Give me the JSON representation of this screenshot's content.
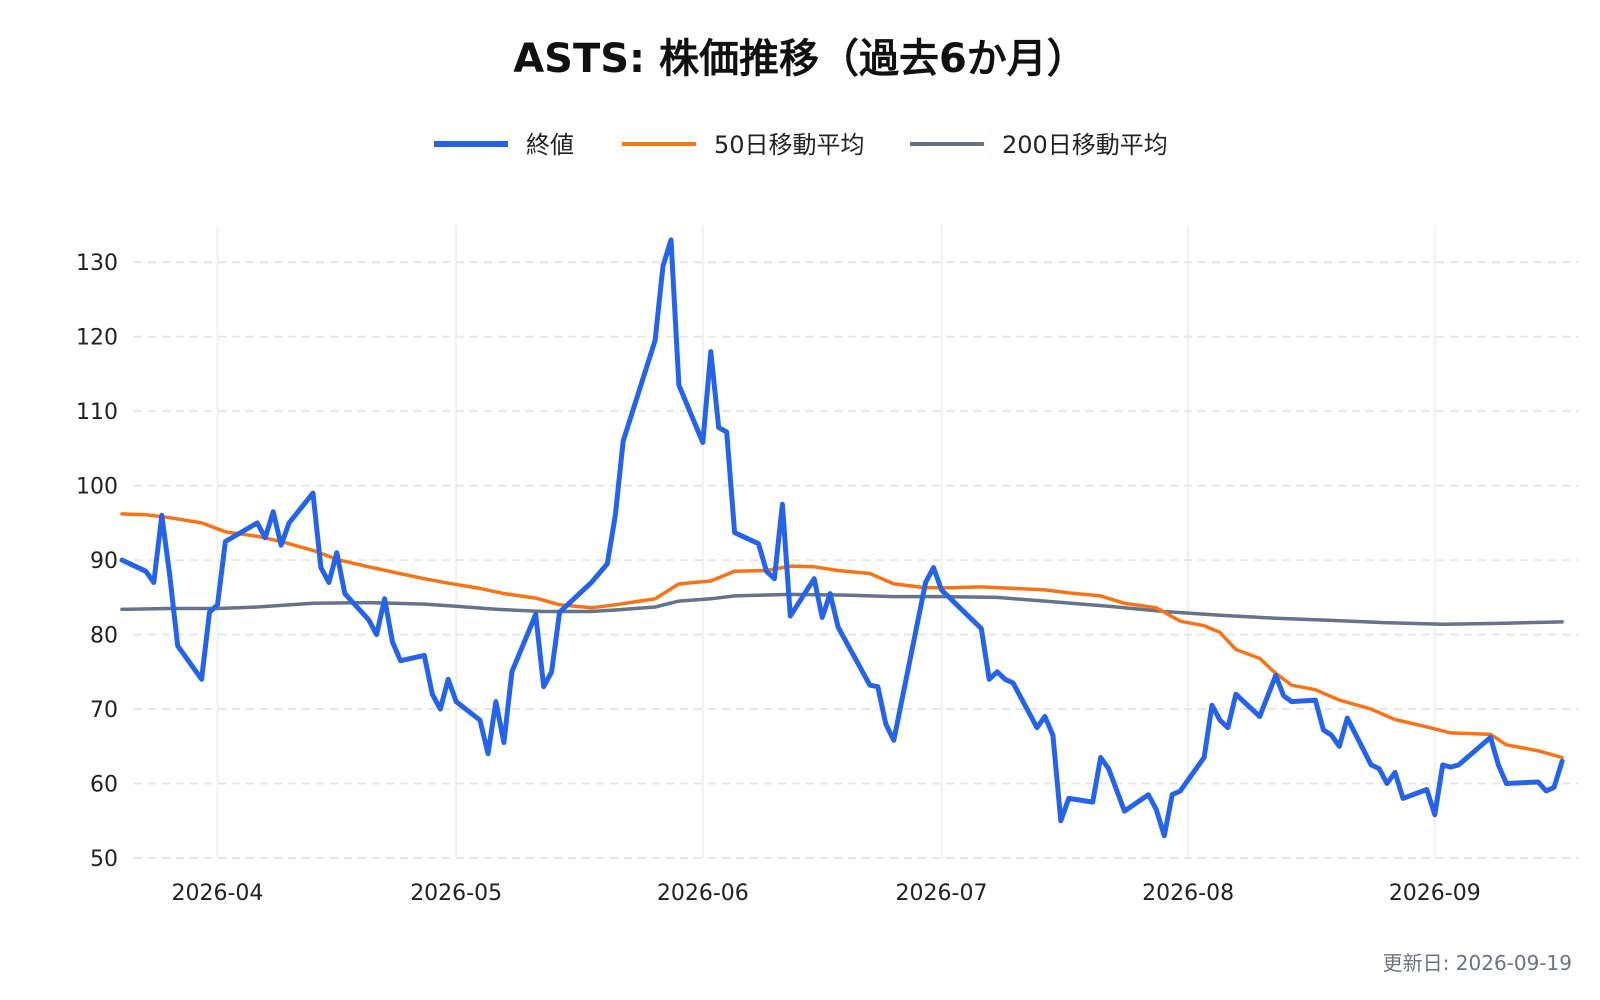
{
  "chart_data": {
    "type": "line",
    "title": "ASTS: 株価推移（過去6か月）",
    "updated_label": "更新日: 2026-09-19",
    "legend_position": "top-center",
    "grid": true,
    "xlim": [
      "2026-03-20",
      "2026-09-19"
    ],
    "ylim": [
      50,
      135
    ],
    "y_ticks": [
      50,
      60,
      70,
      80,
      90,
      100,
      110,
      120,
      130
    ],
    "x_ticks": [
      {
        "date": "2026-04-01",
        "label": "2026-04"
      },
      {
        "date": "2026-05-01",
        "label": "2026-05"
      },
      {
        "date": "2026-06-01",
        "label": "2026-06"
      },
      {
        "date": "2026-07-01",
        "label": "2026-07"
      },
      {
        "date": "2026-08-01",
        "label": "2026-08"
      },
      {
        "date": "2026-09-01",
        "label": "2026-09"
      }
    ],
    "series": [
      {
        "name": "終値",
        "color": "#2563eb",
        "points": [
          [
            "2026-03-20",
            90.0
          ],
          [
            "2026-03-23",
            88.5
          ],
          [
            "2026-03-24",
            87.0
          ],
          [
            "2026-03-25",
            96.0
          ],
          [
            "2026-03-26",
            88.0
          ],
          [
            "2026-03-27",
            78.5
          ],
          [
            "2026-03-30",
            74.0
          ],
          [
            "2026-03-31",
            83.0
          ],
          [
            "2026-04-01",
            84.0
          ],
          [
            "2026-04-02",
            92.5
          ],
          [
            "2026-04-06",
            95.0
          ],
          [
            "2026-04-07",
            93.0
          ],
          [
            "2026-04-08",
            96.5
          ],
          [
            "2026-04-09",
            92.0
          ],
          [
            "2026-04-10",
            95.0
          ],
          [
            "2026-04-13",
            99.0
          ],
          [
            "2026-04-14",
            89.0
          ],
          [
            "2026-04-15",
            87.0
          ],
          [
            "2026-04-16",
            91.0
          ],
          [
            "2026-04-17",
            85.5
          ],
          [
            "2026-04-20",
            82.0
          ],
          [
            "2026-04-21",
            80.0
          ],
          [
            "2026-04-22",
            84.8
          ],
          [
            "2026-04-23",
            79.0
          ],
          [
            "2026-04-24",
            76.5
          ],
          [
            "2026-04-27",
            77.2
          ],
          [
            "2026-04-28",
            72.0
          ],
          [
            "2026-04-29",
            70.0
          ],
          [
            "2026-04-30",
            74.0
          ],
          [
            "2026-05-01",
            71.0
          ],
          [
            "2026-05-04",
            68.5
          ],
          [
            "2026-05-05",
            64.0
          ],
          [
            "2026-05-06",
            71.0
          ],
          [
            "2026-05-07",
            65.5
          ],
          [
            "2026-05-08",
            75.0
          ],
          [
            "2026-05-11",
            82.7
          ],
          [
            "2026-05-12",
            73.0
          ],
          [
            "2026-05-13",
            75.0
          ],
          [
            "2026-05-14",
            83.0
          ],
          [
            "2026-05-18",
            87.0
          ],
          [
            "2026-05-20",
            89.5
          ],
          [
            "2026-05-21",
            96.0
          ],
          [
            "2026-05-22",
            106.0
          ],
          [
            "2026-05-26",
            119.5
          ],
          [
            "2026-05-27",
            129.5
          ],
          [
            "2026-05-28",
            133.0
          ],
          [
            "2026-05-29",
            113.5
          ],
          [
            "2026-06-01",
            105.8
          ],
          [
            "2026-06-02",
            118.0
          ],
          [
            "2026-06-03",
            107.8
          ],
          [
            "2026-06-04",
            107.2
          ],
          [
            "2026-06-05",
            93.7
          ],
          [
            "2026-06-08",
            92.2
          ],
          [
            "2026-06-09",
            88.5
          ],
          [
            "2026-06-10",
            87.5
          ],
          [
            "2026-06-11",
            97.5
          ],
          [
            "2026-06-12",
            82.5
          ],
          [
            "2026-06-15",
            87.5
          ],
          [
            "2026-06-16",
            82.3
          ],
          [
            "2026-06-17",
            85.5
          ],
          [
            "2026-06-18",
            81.0
          ],
          [
            "2026-06-22",
            73.2
          ],
          [
            "2026-06-23",
            73.0
          ],
          [
            "2026-06-24",
            68.0
          ],
          [
            "2026-06-25",
            65.8
          ],
          [
            "2026-06-29",
            87.0
          ],
          [
            "2026-06-30",
            89.0
          ],
          [
            "2026-07-01",
            86.0
          ],
          [
            "2026-07-06",
            80.8
          ],
          [
            "2026-07-07",
            74.0
          ],
          [
            "2026-07-08",
            75.0
          ],
          [
            "2026-07-09",
            74.0
          ],
          [
            "2026-07-10",
            73.5
          ],
          [
            "2026-07-13",
            67.5
          ],
          [
            "2026-07-14",
            69.0
          ],
          [
            "2026-07-15",
            66.5
          ],
          [
            "2026-07-16",
            55.0
          ],
          [
            "2026-07-17",
            58.0
          ],
          [
            "2026-07-20",
            57.5
          ],
          [
            "2026-07-21",
            63.5
          ],
          [
            "2026-07-22",
            62.0
          ],
          [
            "2026-07-24",
            56.3
          ],
          [
            "2026-07-27",
            58.5
          ],
          [
            "2026-07-28",
            56.5
          ],
          [
            "2026-07-29",
            53.0
          ],
          [
            "2026-07-30",
            58.5
          ],
          [
            "2026-07-31",
            59.0
          ],
          [
            "2026-08-03",
            63.5
          ],
          [
            "2026-08-04",
            70.5
          ],
          [
            "2026-08-05",
            68.5
          ],
          [
            "2026-08-06",
            67.5
          ],
          [
            "2026-08-07",
            72.0
          ],
          [
            "2026-08-10",
            69.0
          ],
          [
            "2026-08-12",
            74.5
          ],
          [
            "2026-08-13",
            71.8
          ],
          [
            "2026-08-14",
            71.0
          ],
          [
            "2026-08-17",
            71.2
          ],
          [
            "2026-08-18",
            67.2
          ],
          [
            "2026-08-19",
            66.5
          ],
          [
            "2026-08-20",
            65.0
          ],
          [
            "2026-08-21",
            68.8
          ],
          [
            "2026-08-24",
            62.5
          ],
          [
            "2026-08-25",
            62.0
          ],
          [
            "2026-08-26",
            60.0
          ],
          [
            "2026-08-27",
            61.5
          ],
          [
            "2026-08-28",
            58.0
          ],
          [
            "2026-08-31",
            59.2
          ],
          [
            "2026-09-01",
            55.8
          ],
          [
            "2026-09-02",
            62.5
          ],
          [
            "2026-09-03",
            62.2
          ],
          [
            "2026-09-04",
            62.5
          ],
          [
            "2026-09-08",
            66.2
          ],
          [
            "2026-09-09",
            62.5
          ],
          [
            "2026-09-10",
            60.0
          ],
          [
            "2026-09-14",
            60.2
          ],
          [
            "2026-09-15",
            59.0
          ],
          [
            "2026-09-16",
            59.5
          ],
          [
            "2026-09-17",
            63.0
          ]
        ]
      },
      {
        "name": "50日移動平均",
        "color": "#f97316",
        "points": [
          [
            "2026-03-20",
            96.2
          ],
          [
            "2026-03-23",
            96.1
          ],
          [
            "2026-03-26",
            95.7
          ],
          [
            "2026-03-30",
            95.0
          ],
          [
            "2026-04-02",
            93.8
          ],
          [
            "2026-04-06",
            93.2
          ],
          [
            "2026-04-09",
            92.5
          ],
          [
            "2026-04-13",
            91.3
          ],
          [
            "2026-04-16",
            90.1
          ],
          [
            "2026-04-20",
            89.1
          ],
          [
            "2026-04-23",
            88.4
          ],
          [
            "2026-04-27",
            87.5
          ],
          [
            "2026-04-30",
            86.9
          ],
          [
            "2026-05-04",
            86.2
          ],
          [
            "2026-05-07",
            85.5
          ],
          [
            "2026-05-11",
            84.9
          ],
          [
            "2026-05-14",
            84.0
          ],
          [
            "2026-05-18",
            83.6
          ],
          [
            "2026-05-21",
            84.0
          ],
          [
            "2026-05-26",
            84.8
          ],
          [
            "2026-05-29",
            86.8
          ],
          [
            "2026-06-02",
            87.2
          ],
          [
            "2026-06-05",
            88.5
          ],
          [
            "2026-06-09",
            88.6
          ],
          [
            "2026-06-12",
            89.2
          ],
          [
            "2026-06-15",
            89.1
          ],
          [
            "2026-06-18",
            88.6
          ],
          [
            "2026-06-22",
            88.2
          ],
          [
            "2026-06-25",
            86.8
          ],
          [
            "2026-06-29",
            86.3
          ],
          [
            "2026-07-02",
            86.3
          ],
          [
            "2026-07-06",
            86.4
          ],
          [
            "2026-07-10",
            86.2
          ],
          [
            "2026-07-14",
            86.0
          ],
          [
            "2026-07-17",
            85.6
          ],
          [
            "2026-07-21",
            85.2
          ],
          [
            "2026-07-24",
            84.2
          ],
          [
            "2026-07-28",
            83.6
          ],
          [
            "2026-07-31",
            81.8
          ],
          [
            "2026-08-03",
            81.2
          ],
          [
            "2026-08-05",
            80.3
          ],
          [
            "2026-08-07",
            78.0
          ],
          [
            "2026-08-10",
            76.8
          ],
          [
            "2026-08-12",
            74.8
          ],
          [
            "2026-08-14",
            73.2
          ],
          [
            "2026-08-17",
            72.6
          ],
          [
            "2026-08-20",
            71.2
          ],
          [
            "2026-08-24",
            70.0
          ],
          [
            "2026-08-27",
            68.6
          ],
          [
            "2026-08-31",
            67.6
          ],
          [
            "2026-09-03",
            66.8
          ],
          [
            "2026-09-08",
            66.6
          ],
          [
            "2026-09-10",
            65.2
          ],
          [
            "2026-09-14",
            64.4
          ],
          [
            "2026-09-17",
            63.5
          ]
        ]
      },
      {
        "name": "200日移動平均",
        "color": "#64748b",
        "points": [
          [
            "2026-03-20",
            83.4
          ],
          [
            "2026-03-26",
            83.5
          ],
          [
            "2026-04-01",
            83.5
          ],
          [
            "2026-04-06",
            83.7
          ],
          [
            "2026-04-13",
            84.2
          ],
          [
            "2026-04-20",
            84.3
          ],
          [
            "2026-04-27",
            84.1
          ],
          [
            "2026-05-01",
            83.8
          ],
          [
            "2026-05-06",
            83.4
          ],
          [
            "2026-05-12",
            83.1
          ],
          [
            "2026-05-18",
            83.1
          ],
          [
            "2026-05-21",
            83.3
          ],
          [
            "2026-05-26",
            83.7
          ],
          [
            "2026-05-29",
            84.5
          ],
          [
            "2026-06-02",
            84.8
          ],
          [
            "2026-06-05",
            85.2
          ],
          [
            "2026-06-12",
            85.4
          ],
          [
            "2026-06-19",
            85.3
          ],
          [
            "2026-06-25",
            85.1
          ],
          [
            "2026-07-01",
            85.1
          ],
          [
            "2026-07-08",
            85.0
          ],
          [
            "2026-07-15",
            84.4
          ],
          [
            "2026-07-22",
            83.8
          ],
          [
            "2026-07-29",
            83.1
          ],
          [
            "2026-08-05",
            82.6
          ],
          [
            "2026-08-12",
            82.2
          ],
          [
            "2026-08-19",
            81.9
          ],
          [
            "2026-08-26",
            81.6
          ],
          [
            "2026-09-02",
            81.4
          ],
          [
            "2026-09-09",
            81.5
          ],
          [
            "2026-09-17",
            81.7
          ]
        ]
      }
    ]
  }
}
